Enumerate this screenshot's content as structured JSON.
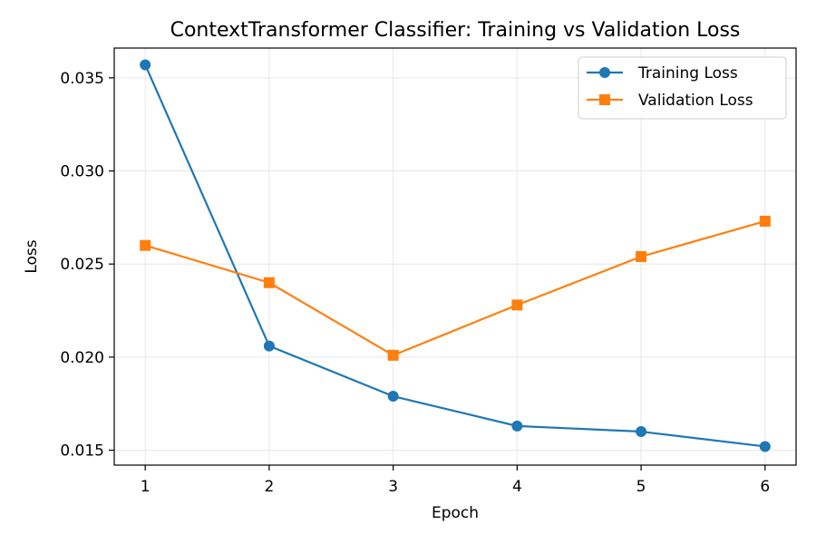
{
  "chart_data": {
    "type": "line",
    "title": "ContextTransformer Classifier: Training vs Validation Loss",
    "xlabel": "Epoch",
    "ylabel": "Loss",
    "x": [
      1,
      2,
      3,
      4,
      5,
      6
    ],
    "x_ticks": [
      "1",
      "2",
      "3",
      "4",
      "5",
      "6"
    ],
    "y_ticks": [
      "0.015",
      "0.020",
      "0.025",
      "0.030",
      "0.035"
    ],
    "xlim": [
      0.75,
      6.25
    ],
    "ylim": [
      0.0142,
      0.0366
    ],
    "grid": true,
    "legend_position": "top-right",
    "series": [
      {
        "name": "Training Loss",
        "color": "#1f77b4",
        "marker": "circle",
        "values": [
          0.0357,
          0.0206,
          0.0179,
          0.0163,
          0.016,
          0.0152
        ]
      },
      {
        "name": "Validation Loss",
        "color": "#ff7f0e",
        "marker": "square",
        "values": [
          0.026,
          0.024,
          0.0201,
          0.0228,
          0.0254,
          0.0273
        ]
      }
    ]
  }
}
